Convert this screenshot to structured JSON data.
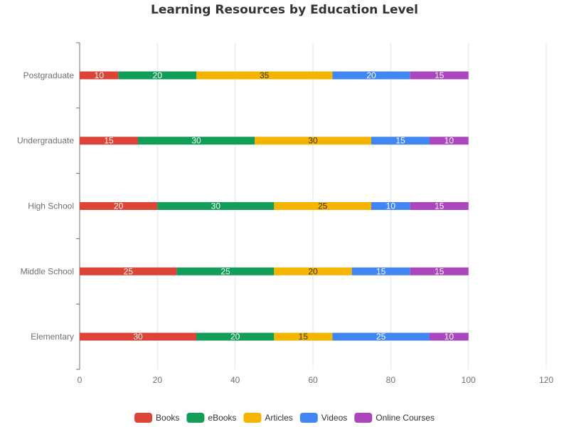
{
  "chart_data": {
    "type": "bar",
    "orientation": "horizontal",
    "stacked": true,
    "title": "Learning Resources by Education Level",
    "xlabel": "",
    "ylabel": "",
    "xlim": [
      0,
      120
    ],
    "xticks": [
      0,
      20,
      40,
      60,
      80,
      100,
      120
    ],
    "grid": true,
    "legend_position": "bottom",
    "categories": [
      "Elementary",
      "Middle School",
      "High School",
      "Undergraduate",
      "Postgraduate"
    ],
    "series": [
      {
        "name": "Books",
        "color": "#dc4437",
        "label_color": "#ffffff",
        "values": [
          30,
          25,
          20,
          15,
          10
        ]
      },
      {
        "name": "eBooks",
        "color": "#129d58",
        "label_color": "#ffffff",
        "values": [
          20,
          25,
          30,
          30,
          20
        ]
      },
      {
        "name": "Articles",
        "color": "#f4b400",
        "label_color": "#333333",
        "values": [
          15,
          20,
          25,
          30,
          35
        ]
      },
      {
        "name": "Videos",
        "color": "#4286f4",
        "label_color": "#ffffff",
        "values": [
          25,
          15,
          10,
          15,
          20
        ]
      },
      {
        "name": "Online Courses",
        "color": "#aa47bc",
        "label_color": "#ffffff",
        "values": [
          10,
          15,
          15,
          10,
          15
        ]
      }
    ]
  }
}
